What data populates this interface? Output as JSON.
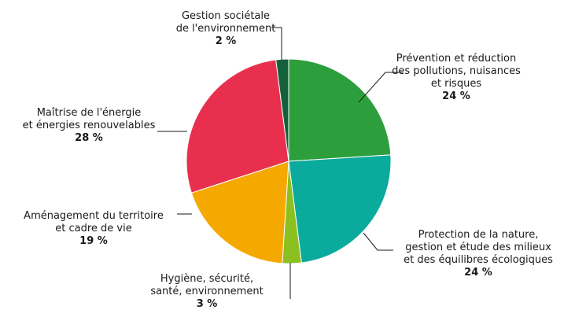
{
  "chart_data": {
    "type": "pie",
    "title": "",
    "legend": "none",
    "slices": [
      {
        "label_lines": [
          "Prévention et réduction",
          "des pollutions, nuisances",
          "et risques"
        ],
        "value_text": "24 %",
        "value": 24,
        "color": "#2d9e3c"
      },
      {
        "label_lines": [
          "Protection de la nature,",
          "gestion et étude des milieux",
          "et des équilibres écologiques"
        ],
        "value_text": "24 %",
        "value": 24,
        "color": "#0aab9c"
      },
      {
        "label_lines": [
          "Hygiène, sécurité,",
          "santé, environnement"
        ],
        "value_text": "3 %",
        "value": 3,
        "color": "#8cc021"
      },
      {
        "label_lines": [
          "Aménagement du territoire",
          "et cadre de vie"
        ],
        "value_text": "19 %",
        "value": 19,
        "color": "#f5a800"
      },
      {
        "label_lines": [
          "Maîtrise de l'énergie",
          "et énergies renouvelables"
        ],
        "value_text": "28 %",
        "value": 28,
        "color": "#e8304e"
      },
      {
        "label_lines": [
          "Gestion sociétale",
          "de l'environnement"
        ],
        "value_text": "2 %",
        "value": 2,
        "color": "#14603a"
      }
    ]
  }
}
